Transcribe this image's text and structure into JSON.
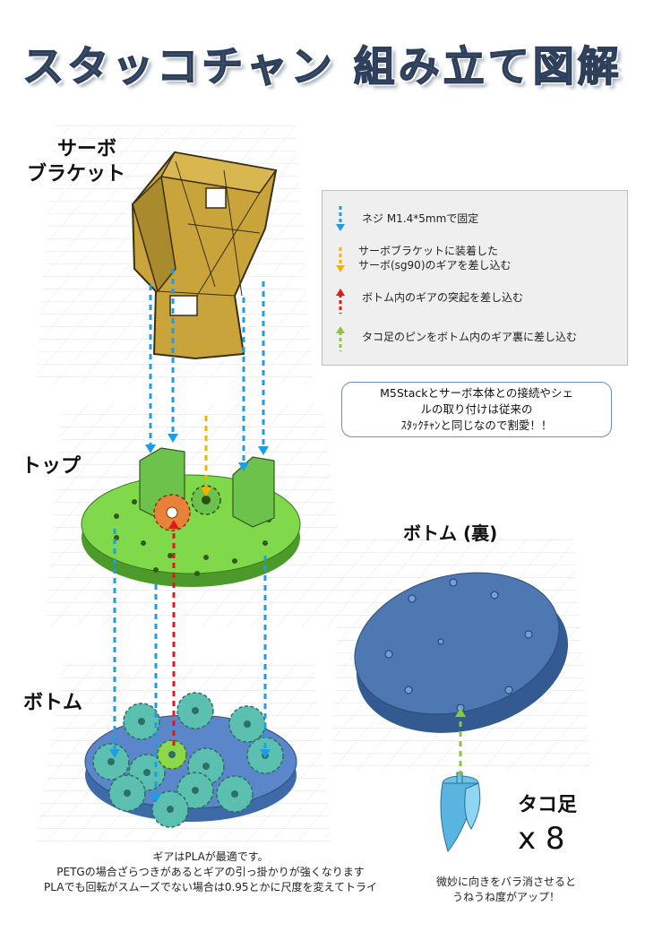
{
  "title": "スタッコチャン 組み立て図解",
  "parts": {
    "servo_bracket": [
      "サーボ",
      "ブラケット"
    ],
    "top": "トップ",
    "bottom": "ボトム",
    "bottom_back": "ボトム (裏)",
    "tako_leg": "タコ足",
    "tako_count": "x 8"
  },
  "legend": {
    "items": [
      {
        "text": "ネジ M1.4*5mmで固定",
        "color": "#1e9ee0"
      },
      {
        "text": "サーボブラケットに装着した\nサーボ(sg90)のギアを差し込む",
        "color": "#f0b400"
      },
      {
        "text": "ボトム内のギアの突起を差し込む",
        "color": "#e01a1a"
      },
      {
        "text": "タコ足のピンをボトム内のギア裏に差し込む",
        "color": "#8cc63f"
      }
    ]
  },
  "note": "M5Stackとサーボ本体との接続やシェルの取り付けは従来のスタックチャンと同じなので割愛！！",
  "note_lines": [
    "M5Stackとサーボ本体との接続やシェ",
    "ルの取り付けは従来の",
    "ｽﾀｯｸﾁｬﾝと同じなので割愛！！"
  ],
  "gear_note": [
    "ギアはPLAが最適です。",
    "PETGの場合ざらつきがあるとギアの引っ掛かりが強くなります",
    "PLAでも回転がスムーズでない場合は0.95とかに尺度を変えてトライ"
  ],
  "leg_note": [
    "微妙に向きをバラ消させると",
    "うねうね度がアップ！"
  ],
  "colors": {
    "bracket": "#c9a43a",
    "top": "#7fd94a",
    "bottom": "#5b86c9",
    "gear_orange": "#e8813a",
    "gear_teal": "#5cc0b0",
    "gear_green": "#6cc24a"
  }
}
